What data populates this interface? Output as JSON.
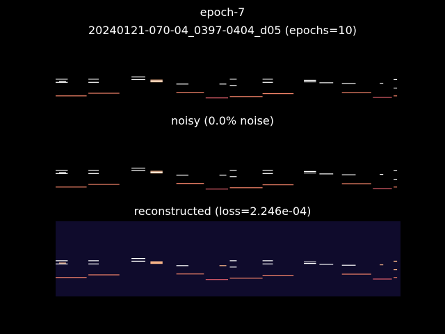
{
  "figure": {
    "suptitle_line1": "epoch-7",
    "suptitle_line2": "20240121-070-04_0397-0404_d05 (epochs=10)"
  },
  "colors": {
    "figure_background": "#000000",
    "panel_background_dark": "#050407",
    "panel_background_reconstructed": "#0f0b2c",
    "note_white": "#ffffff",
    "note_peach": "#fdb88a",
    "note_orange": "#f7856a",
    "note_pink": "#e05f6c"
  },
  "chart_data": [
    {
      "type": "heatmap",
      "name": "original",
      "title": "",
      "xlabel": "",
      "ylabel": "",
      "axes_visible": false,
      "colormap": "magma",
      "background_level": 0.0,
      "notes": [
        {
          "t0": 0.0,
          "t1": 3.5,
          "p": 0.1,
          "v": 1.0
        },
        {
          "t0": 0.0,
          "t1": 3.5,
          "p": 0.24,
          "v": 1.0
        },
        {
          "t0": 1.0,
          "t1": 3.0,
          "p": 0.2,
          "v": 1.0
        },
        {
          "t0": 0.0,
          "t1": 9.0,
          "p": 0.85,
          "v": 0.8
        },
        {
          "t0": 9.5,
          "t1": 12.5,
          "p": 0.1,
          "v": 1.0
        },
        {
          "t0": 9.5,
          "t1": 12.5,
          "p": 0.24,
          "v": 1.0
        },
        {
          "t0": 9.5,
          "t1": 18.5,
          "p": 0.73,
          "v": 0.8
        },
        {
          "t0": 22.0,
          "t1": 26.0,
          "p": 0.0,
          "v": 1.0
        },
        {
          "t0": 22.0,
          "t1": 26.0,
          "p": 0.12,
          "v": 1.0
        },
        {
          "t0": 27.5,
          "t1": 31.0,
          "p": 0.14,
          "v": 0.9
        },
        {
          "t0": 27.5,
          "t1": 31.0,
          "p": 0.18,
          "v": 1.0
        },
        {
          "t0": 27.5,
          "t1": 31.0,
          "p": 0.22,
          "v": 0.9
        },
        {
          "t0": 35.0,
          "t1": 38.5,
          "p": 0.32,
          "v": 1.0
        },
        {
          "t0": 35.0,
          "t1": 43.0,
          "p": 0.69,
          "v": 0.8
        },
        {
          "t0": 43.5,
          "t1": 50.0,
          "p": 0.94,
          "v": 0.7
        },
        {
          "t0": 47.5,
          "t1": 49.5,
          "p": 0.32,
          "v": 1.0
        },
        {
          "t0": 50.5,
          "t1": 52.5,
          "p": 0.1,
          "v": 1.0
        },
        {
          "t0": 50.5,
          "t1": 52.5,
          "p": 0.38,
          "v": 1.0
        },
        {
          "t0": 50.5,
          "t1": 60.0,
          "p": 0.88,
          "v": 0.8
        },
        {
          "t0": 60.0,
          "t1": 63.0,
          "p": 0.1,
          "v": 1.0
        },
        {
          "t0": 60.0,
          "t1": 63.0,
          "p": 0.24,
          "v": 1.0
        },
        {
          "t0": 60.0,
          "t1": 69.0,
          "p": 0.75,
          "v": 0.8
        },
        {
          "t0": 72.0,
          "t1": 75.5,
          "p": 0.15,
          "v": 1.0
        },
        {
          "t0": 72.0,
          "t1": 75.5,
          "p": 0.22,
          "v": 1.0
        },
        {
          "t0": 76.5,
          "t1": 80.5,
          "p": 0.26,
          "v": 1.0
        },
        {
          "t0": 83.0,
          "t1": 87.0,
          "p": 0.3,
          "v": 1.0
        },
        {
          "t0": 83.0,
          "t1": 91.5,
          "p": 0.7,
          "v": 0.8
        },
        {
          "t0": 92.0,
          "t1": 97.5,
          "p": 0.92,
          "v": 0.7
        },
        {
          "t0": 94.0,
          "t1": 95.0,
          "p": 0.28,
          "v": 1.0
        },
        {
          "t0": 98.0,
          "t1": 99.0,
          "p": 0.12,
          "v": 1.0
        },
        {
          "t0": 98.0,
          "t1": 99.0,
          "p": 0.5,
          "v": 1.0
        },
        {
          "t0": 98.0,
          "t1": 99.0,
          "p": 0.85,
          "v": 0.8
        }
      ]
    },
    {
      "type": "heatmap",
      "name": "noisy",
      "title": "noisy (0.0% noise)",
      "xlabel": "",
      "ylabel": "",
      "axes_visible": false,
      "colormap": "magma",
      "noise_percent": 0.0,
      "background_level": 0.0,
      "notes": [
        {
          "t0": 0.0,
          "t1": 3.5,
          "p": 0.1,
          "v": 1.0
        },
        {
          "t0": 0.0,
          "t1": 3.5,
          "p": 0.24,
          "v": 1.0
        },
        {
          "t0": 1.0,
          "t1": 3.0,
          "p": 0.2,
          "v": 1.0
        },
        {
          "t0": 0.0,
          "t1": 9.0,
          "p": 0.85,
          "v": 0.8
        },
        {
          "t0": 9.5,
          "t1": 12.5,
          "p": 0.1,
          "v": 1.0
        },
        {
          "t0": 9.5,
          "t1": 12.5,
          "p": 0.24,
          "v": 1.0
        },
        {
          "t0": 9.5,
          "t1": 18.5,
          "p": 0.73,
          "v": 0.8
        },
        {
          "t0": 22.0,
          "t1": 26.0,
          "p": 0.0,
          "v": 1.0
        },
        {
          "t0": 22.0,
          "t1": 26.0,
          "p": 0.12,
          "v": 1.0
        },
        {
          "t0": 27.5,
          "t1": 31.0,
          "p": 0.14,
          "v": 0.9
        },
        {
          "t0": 27.5,
          "t1": 31.0,
          "p": 0.18,
          "v": 1.0
        },
        {
          "t0": 27.5,
          "t1": 31.0,
          "p": 0.22,
          "v": 0.9
        },
        {
          "t0": 35.0,
          "t1": 38.5,
          "p": 0.32,
          "v": 1.0
        },
        {
          "t0": 35.0,
          "t1": 43.0,
          "p": 0.69,
          "v": 0.8
        },
        {
          "t0": 43.5,
          "t1": 50.0,
          "p": 0.94,
          "v": 0.7
        },
        {
          "t0": 47.5,
          "t1": 49.5,
          "p": 0.32,
          "v": 1.0
        },
        {
          "t0": 50.5,
          "t1": 52.5,
          "p": 0.1,
          "v": 1.0
        },
        {
          "t0": 50.5,
          "t1": 52.5,
          "p": 0.38,
          "v": 1.0
        },
        {
          "t0": 50.5,
          "t1": 60.0,
          "p": 0.88,
          "v": 0.8
        },
        {
          "t0": 60.0,
          "t1": 63.0,
          "p": 0.1,
          "v": 1.0
        },
        {
          "t0": 60.0,
          "t1": 63.0,
          "p": 0.24,
          "v": 1.0
        },
        {
          "t0": 60.0,
          "t1": 69.0,
          "p": 0.75,
          "v": 0.8
        },
        {
          "t0": 72.0,
          "t1": 75.5,
          "p": 0.15,
          "v": 1.0
        },
        {
          "t0": 72.0,
          "t1": 75.5,
          "p": 0.22,
          "v": 1.0
        },
        {
          "t0": 76.5,
          "t1": 80.5,
          "p": 0.26,
          "v": 1.0
        },
        {
          "t0": 83.0,
          "t1": 87.0,
          "p": 0.3,
          "v": 1.0
        },
        {
          "t0": 83.0,
          "t1": 91.5,
          "p": 0.7,
          "v": 0.8
        },
        {
          "t0": 92.0,
          "t1": 97.5,
          "p": 0.92,
          "v": 0.7
        },
        {
          "t0": 94.0,
          "t1": 95.0,
          "p": 0.28,
          "v": 1.0
        },
        {
          "t0": 98.0,
          "t1": 99.0,
          "p": 0.12,
          "v": 1.0
        },
        {
          "t0": 98.0,
          "t1": 99.0,
          "p": 0.5,
          "v": 1.0
        },
        {
          "t0": 98.0,
          "t1": 99.0,
          "p": 0.85,
          "v": 0.8
        }
      ]
    },
    {
      "type": "heatmap",
      "name": "reconstructed",
      "title": "reconstructed (loss=2.246e-04)",
      "xlabel": "",
      "ylabel": "",
      "axes_visible": false,
      "colormap": "magma",
      "loss": 0.0002246,
      "background_level": 0.07,
      "notes": [
        {
          "t0": 0.0,
          "t1": 3.5,
          "p": 0.1,
          "v": 0.95
        },
        {
          "t0": 0.0,
          "t1": 3.5,
          "p": 0.24,
          "v": 0.95
        },
        {
          "t0": 1.0,
          "t1": 3.0,
          "p": 0.2,
          "v": 0.9
        },
        {
          "t0": 0.0,
          "t1": 9.0,
          "p": 0.85,
          "v": 0.8
        },
        {
          "t0": 9.5,
          "t1": 12.5,
          "p": 0.1,
          "v": 0.95
        },
        {
          "t0": 9.5,
          "t1": 12.5,
          "p": 0.24,
          "v": 0.95
        },
        {
          "t0": 9.5,
          "t1": 18.5,
          "p": 0.73,
          "v": 0.8
        },
        {
          "t0": 22.0,
          "t1": 26.0,
          "p": 0.0,
          "v": 0.95
        },
        {
          "t0": 22.0,
          "t1": 26.0,
          "p": 0.12,
          "v": 0.95
        },
        {
          "t0": 27.5,
          "t1": 31.0,
          "p": 0.14,
          "v": 0.85
        },
        {
          "t0": 27.5,
          "t1": 31.0,
          "p": 0.18,
          "v": 0.9
        },
        {
          "t0": 27.5,
          "t1": 31.0,
          "p": 0.22,
          "v": 0.85
        },
        {
          "t0": 35.0,
          "t1": 38.5,
          "p": 0.32,
          "v": 0.95
        },
        {
          "t0": 35.0,
          "t1": 43.0,
          "p": 0.69,
          "v": 0.8
        },
        {
          "t0": 43.5,
          "t1": 50.0,
          "p": 0.94,
          "v": 0.7
        },
        {
          "t0": 47.5,
          "t1": 49.5,
          "p": 0.32,
          "v": 0.9
        },
        {
          "t0": 50.5,
          "t1": 52.5,
          "p": 0.1,
          "v": 0.95
        },
        {
          "t0": 50.5,
          "t1": 52.5,
          "p": 0.38,
          "v": 0.95
        },
        {
          "t0": 50.5,
          "t1": 60.0,
          "p": 0.88,
          "v": 0.8
        },
        {
          "t0": 60.0,
          "t1": 63.0,
          "p": 0.1,
          "v": 0.95
        },
        {
          "t0": 60.0,
          "t1": 63.0,
          "p": 0.24,
          "v": 0.95
        },
        {
          "t0": 60.0,
          "t1": 69.0,
          "p": 0.75,
          "v": 0.8
        },
        {
          "t0": 72.0,
          "t1": 75.5,
          "p": 0.15,
          "v": 0.95
        },
        {
          "t0": 72.0,
          "t1": 75.5,
          "p": 0.22,
          "v": 0.95
        },
        {
          "t0": 76.5,
          "t1": 80.5,
          "p": 0.26,
          "v": 0.95
        },
        {
          "t0": 83.0,
          "t1": 87.0,
          "p": 0.3,
          "v": 0.95
        },
        {
          "t0": 83.0,
          "t1": 91.5,
          "p": 0.7,
          "v": 0.8
        },
        {
          "t0": 92.0,
          "t1": 97.5,
          "p": 0.92,
          "v": 0.7
        },
        {
          "t0": 94.0,
          "t1": 95.0,
          "p": 0.28,
          "v": 0.9
        },
        {
          "t0": 98.0,
          "t1": 99.0,
          "p": 0.12,
          "v": 0.9
        },
        {
          "t0": 98.0,
          "t1": 99.0,
          "p": 0.5,
          "v": 0.9
        },
        {
          "t0": 98.0,
          "t1": 99.0,
          "p": 0.85,
          "v": 0.75
        }
      ]
    }
  ]
}
